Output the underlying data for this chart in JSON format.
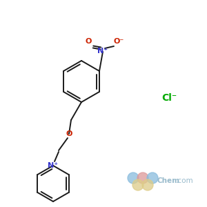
{
  "background_color": "#ffffff",
  "bond_color": "#1a1a1a",
  "nitrogen_color": "#3333cc",
  "oxygen_color": "#cc2200",
  "chlorine_color": "#00aa00",
  "figsize": [
    3.0,
    3.0
  ],
  "dpi": 100,
  "cl_label": "Cl⁻",
  "n_plus_label": "N⁺",
  "o_label": "O",
  "o_minus_label": "O⁻"
}
